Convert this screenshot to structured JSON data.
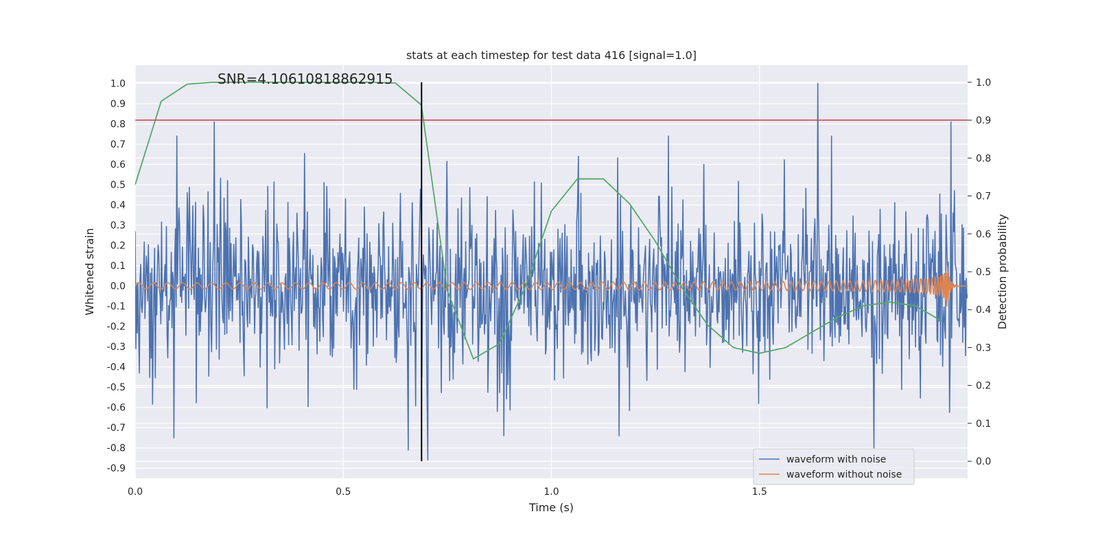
{
  "chart_data": {
    "type": "line",
    "title": "stats at each timestep for test data 416 [signal=1.0]",
    "xlabel": "Time (s)",
    "ylabel_left": "Whitened strain",
    "ylabel_right": "Detection probability",
    "annotation": "SNR=4.10610818862915",
    "xlim": [
      0.0,
      2.0
    ],
    "ylim_left": [
      -0.95,
      1.09
    ],
    "ylim_right": [
      -0.045,
      1.045
    ],
    "x_ticks": [
      0.0,
      0.5,
      1.0,
      1.5
    ],
    "x_tick_labels": [
      "0.0",
      "0.5",
      "1.0",
      "1.5"
    ],
    "y_left_ticks": [
      1.0,
      0.9,
      0.8,
      0.7,
      0.6,
      0.5,
      0.4,
      0.3,
      0.2,
      0.1,
      0.0,
      -0.1,
      -0.2,
      -0.3,
      -0.4,
      -0.5,
      -0.6,
      -0.7,
      -0.8,
      -0.9
    ],
    "y_left_tick_labels": [
      "1.0",
      "0.9",
      "0.8",
      "0.7",
      "0.6",
      "0.5",
      "0.4",
      "0.3",
      "0.2",
      "0.1",
      "0.0",
      "-0.1",
      "-0.2",
      "-0.3",
      "-0.4",
      "-0.5",
      "-0.6",
      "-0.7",
      "-0.8",
      "-0.9"
    ],
    "y_right_ticks": [
      1.0,
      0.9,
      0.8,
      0.7,
      0.6,
      0.5,
      0.4,
      0.3,
      0.2,
      0.1,
      0.0
    ],
    "y_right_tick_labels": [
      "1.0",
      "0.9",
      "0.8",
      "0.7",
      "0.6",
      "0.5",
      "0.4",
      "0.3",
      "0.2",
      "0.1",
      "0.0"
    ],
    "grid": true,
    "legend_position": "bottom-right",
    "threshold_probability": 0.9,
    "detection_time": 0.688,
    "series": [
      {
        "name": "waveform with noise",
        "axis": "left",
        "color": "#4c72b0",
        "duration": 2.0,
        "amplitude_scale": 0.2,
        "extremes": [
          {
            "t": 0.19,
            "y": 0.81
          },
          {
            "t": 0.093,
            "y": -0.75
          },
          {
            "t": 0.656,
            "y": -0.81
          },
          {
            "t": 0.703,
            "y": -0.86
          },
          {
            "t": 0.87,
            "y": -0.62
          },
          {
            "t": 1.065,
            "y": 0.64
          },
          {
            "t": 1.64,
            "y": 1.0
          },
          {
            "t": 1.775,
            "y": -0.8
          },
          {
            "t": 1.96,
            "y": 0.81
          }
        ]
      },
      {
        "name": "waveform without noise",
        "axis": "left",
        "color": "#dd8452",
        "chirp_start_time": 0.0,
        "chirp_merger_time": 1.95,
        "chirp_end_time": 2.0,
        "start_frequency_hz": 28,
        "start_amplitude": 0.015,
        "peak_amplitude": 0.14
      },
      {
        "name": "",
        "axis": "right",
        "color": "#55a868",
        "x": [
          0.0,
          0.0625,
          0.125,
          0.1875,
          0.25,
          0.3125,
          0.375,
          0.4375,
          0.5,
          0.5625,
          0.625,
          0.6875,
          0.75,
          0.8125,
          0.875,
          0.9375,
          1.0,
          1.0625,
          1.125,
          1.1875,
          1.25,
          1.3125,
          1.375,
          1.4375,
          1.5,
          1.5625,
          1.625,
          1.6875,
          1.75,
          1.8125,
          1.875,
          1.9375
        ],
        "y": [
          0.73,
          0.95,
          0.995,
          1.0,
          1.0,
          1.0,
          1.0,
          1.0,
          1.0,
          1.0,
          0.998,
          0.94,
          0.45,
          0.27,
          0.31,
          0.46,
          0.66,
          0.745,
          0.745,
          0.68,
          0.58,
          0.46,
          0.36,
          0.3,
          0.285,
          0.3,
          0.34,
          0.38,
          0.41,
          0.42,
          0.41,
          0.37
        ]
      }
    ]
  }
}
